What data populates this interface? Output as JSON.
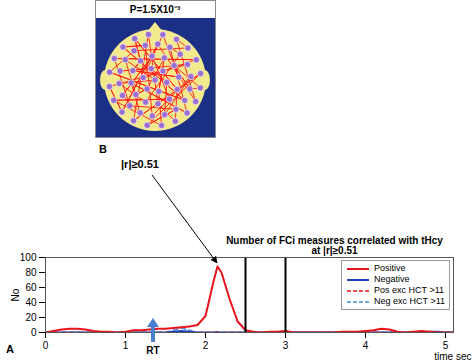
{
  "chart_data": {
    "type": "line",
    "panel_label": "A",
    "title": "Number of FCi measures correlated with tHcy\nat |r|≥0.51",
    "x_label": "time sec",
    "y_label": "No",
    "x": [
      0,
      0.1,
      0.2,
      0.3,
      0.4,
      0.5,
      0.6,
      0.7,
      0.8,
      0.9,
      1.0,
      1.1,
      1.2,
      1.3,
      1.4,
      1.5,
      1.6,
      1.7,
      1.8,
      1.9,
      2.0,
      2.1,
      2.15,
      2.2,
      2.3,
      2.4,
      2.5,
      2.6,
      2.7,
      2.8,
      2.9,
      3.0,
      3.1,
      3.2,
      3.3,
      3.4,
      3.5,
      3.6,
      3.7,
      3.8,
      3.9,
      4.0,
      4.1,
      4.2,
      4.3,
      4.4,
      4.5,
      4.6,
      4.7,
      4.8,
      4.9,
      5.0,
      5.1
    ],
    "series": [
      {
        "name": "Positive",
        "color": "#e8141c",
        "line_style": "solid",
        "values": [
          0,
          2,
          4,
          5,
          5,
          4,
          2,
          1,
          1,
          0,
          1,
          3,
          3,
          4,
          5,
          5,
          6,
          7,
          8,
          10,
          22,
          68,
          88,
          80,
          45,
          15,
          3,
          1,
          0,
          1,
          1,
          2,
          0,
          0,
          0,
          0,
          0,
          0,
          1,
          1,
          1,
          2,
          3,
          5,
          4,
          1,
          0,
          1,
          2,
          1,
          0,
          0,
          0
        ]
      },
      {
        "name": "Negative",
        "color": "#1f3fbf",
        "line_style": "solid",
        "values": [
          0,
          0,
          0,
          0,
          0,
          0,
          0,
          0,
          0,
          0,
          0,
          0,
          0,
          0,
          0,
          0,
          1,
          2,
          1,
          0,
          0,
          0,
          0,
          0,
          0,
          0,
          0,
          0,
          0,
          0,
          0,
          0,
          0,
          0,
          0,
          0,
          0,
          0,
          0,
          0,
          0,
          0,
          0,
          0,
          0,
          0,
          0,
          0,
          0,
          1,
          1,
          0,
          0
        ]
      },
      {
        "name": "Pos exc HCT >11",
        "color": "#e8141c",
        "line_style": "dashed",
        "values": [
          0,
          0,
          0,
          0,
          0,
          0,
          0,
          0,
          0,
          0,
          0,
          0,
          0,
          0,
          0,
          0,
          0,
          0,
          0,
          0,
          0,
          0,
          1,
          0,
          0,
          0,
          0,
          0,
          0,
          0,
          0,
          0,
          0,
          0,
          0,
          0,
          0,
          0,
          0,
          0,
          0,
          0,
          0,
          0,
          0,
          0,
          0,
          0,
          0,
          0,
          0,
          0,
          0
        ]
      },
      {
        "name": "Neg exc HCT >11",
        "color": "#4a90d9",
        "line_style": "dashed",
        "values": [
          0,
          0,
          0,
          0,
          0,
          0,
          0,
          0,
          0,
          0,
          0,
          0,
          0,
          0,
          0,
          0,
          3,
          6,
          3,
          0,
          0,
          0,
          0,
          0,
          0,
          0,
          0,
          0,
          0,
          0,
          0,
          0,
          0,
          0,
          0,
          0,
          0,
          0,
          0,
          0,
          0,
          0,
          0,
          0,
          0,
          0,
          0,
          0,
          0,
          0,
          0,
          0,
          0
        ]
      }
    ],
    "xlim": [
      0,
      5.1
    ],
    "ylim": [
      0,
      100
    ],
    "xticks": [
      0,
      1,
      2,
      3,
      4,
      5
    ],
    "yticks": [
      0,
      20,
      40,
      60,
      80,
      100
    ],
    "vlines": [
      2.5,
      3
    ],
    "annotations": [
      {
        "text": "RT",
        "x": 1.35
      }
    ],
    "legend": "top-right",
    "grid": false
  },
  "panel_b": {
    "label": "B",
    "title": "P=1.5X10⁻³",
    "caption": "|r|≥0.51"
  }
}
